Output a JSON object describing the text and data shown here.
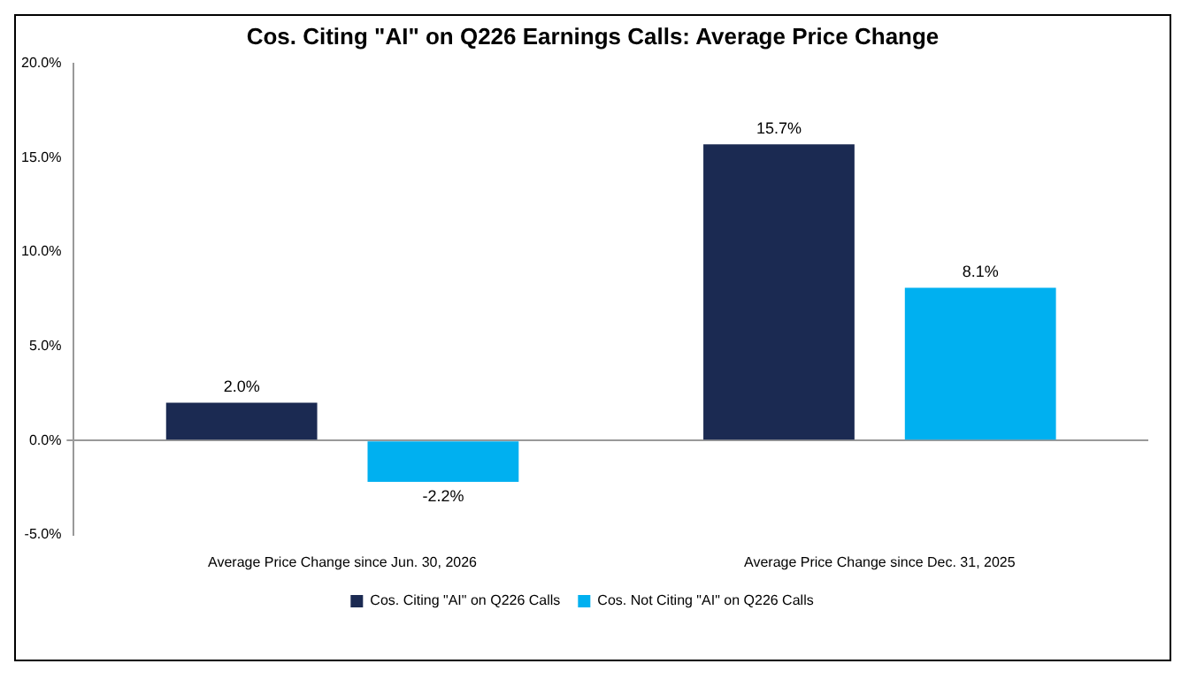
{
  "chart_data": {
    "type": "bar",
    "title": "Cos. Citing \"AI\" on Q226 Earnings Calls: Average Price Change",
    "categories": [
      "Average Price Change since Jun. 30, 2026",
      "Average Price Change since Dec. 31, 2025"
    ],
    "series": [
      {
        "name": "Cos. Citing \"AI\" on Q226 Calls",
        "color": "#1b2a52",
        "values": [
          2.0,
          15.7
        ],
        "value_labels": [
          "2.0%",
          "15.7%"
        ]
      },
      {
        "name": "Cos. Not Citing \"AI\" on Q226 Calls",
        "color": "#00b0f0",
        "values": [
          -2.2,
          8.1
        ],
        "value_labels": [
          "-2.2%",
          "8.1%"
        ]
      }
    ],
    "ylim": [
      -5,
      20
    ],
    "yticks": [
      {
        "value": -5,
        "label": "-5.0%"
      },
      {
        "value": 0,
        "label": "0.0%"
      },
      {
        "value": 5,
        "label": "5.0%"
      },
      {
        "value": 10,
        "label": "10.0%"
      },
      {
        "value": 15,
        "label": "15.0%"
      },
      {
        "value": 20,
        "label": "20.0%"
      }
    ],
    "legend": "bottom"
  }
}
